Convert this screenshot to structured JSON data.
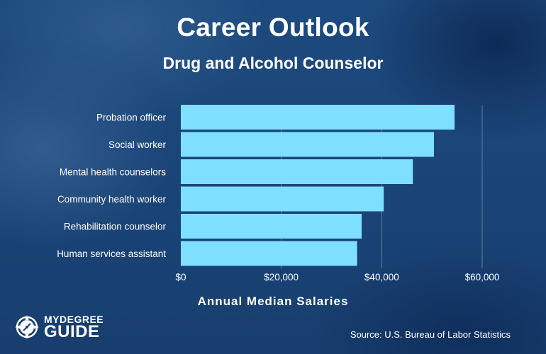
{
  "logo": {
    "line1": "MYDEGREE",
    "line2": "GUIDE",
    "icon": "compass-icon"
  },
  "source": "Source: U.S. Bureau of Labor Statistics",
  "colors": {
    "bar": "#7fdfff",
    "text": "#ffffff",
    "gridline": "#5a7fa6"
  },
  "chart_data": {
    "type": "bar",
    "orientation": "horizontal",
    "title": "Career Outlook",
    "subtitle": "Drug and Alcohol Counselor",
    "xlabel": "Annual Median Salaries",
    "ylabel": "",
    "categories": [
      "Probation officer",
      "Social worker",
      "Mental health counselors",
      "Community health worker",
      "Rehabilitation counselor",
      "Human services assistant"
    ],
    "values": [
      54500,
      50400,
      46200,
      40400,
      36000,
      35100
    ],
    "xlim": [
      0,
      60000
    ],
    "xticks": [
      0,
      20000,
      40000,
      60000
    ],
    "xtick_labels": [
      "$0",
      "$20,000",
      "$40,000",
      "$60,000"
    ],
    "grid": true,
    "legend": "none"
  }
}
